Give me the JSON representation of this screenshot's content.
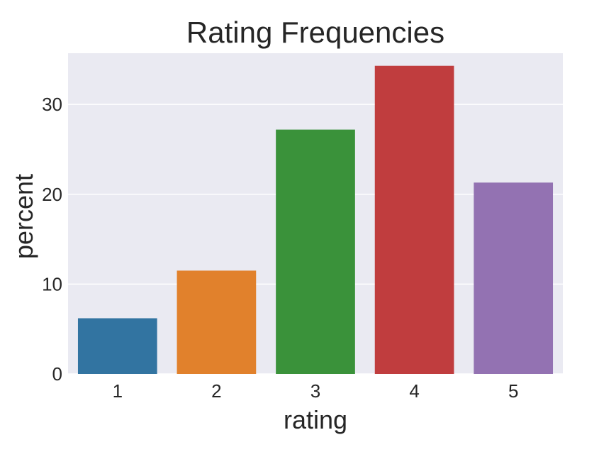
{
  "chart_data": {
    "type": "bar",
    "title": "Rating Frequencies",
    "xlabel": "rating",
    "ylabel": "percent",
    "categories": [
      "1",
      "2",
      "3",
      "4",
      "5"
    ],
    "values": [
      6.2,
      11.5,
      27.2,
      34.3,
      21.3
    ],
    "colors": [
      "#3274a1",
      "#e1812c",
      "#3a923a",
      "#c03d3e",
      "#9372b2"
    ],
    "ylim": [
      0,
      35.7
    ],
    "yticks": [
      0,
      10,
      20,
      30
    ],
    "grid": true,
    "background": "#eaeaf2",
    "legend": "none"
  }
}
